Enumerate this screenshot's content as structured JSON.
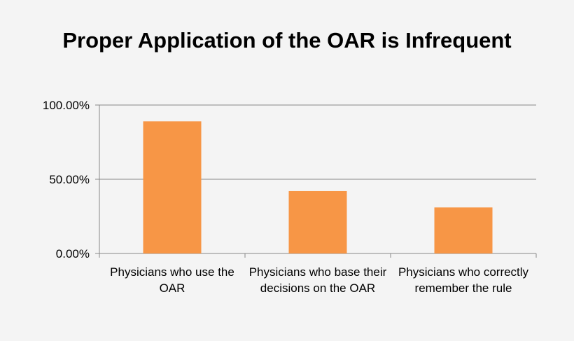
{
  "chart_data": {
    "type": "bar",
    "title": "Proper Application of the OAR is Infrequent",
    "categories": [
      "Physicians who use the OAR",
      "Physicians who base their decisions on the OAR",
      "Physicians who correctly remember the rule"
    ],
    "values": [
      89,
      42,
      31
    ],
    "ylim": [
      0,
      100
    ],
    "yticks": [
      0,
      50,
      100
    ],
    "ytick_labels": [
      "0.00%",
      "50.00%",
      "100.00%"
    ],
    "xlabel": "",
    "ylabel": "",
    "grid": true,
    "legend": "none",
    "bar_color": "#f79646",
    "grid_color": "#888888"
  }
}
